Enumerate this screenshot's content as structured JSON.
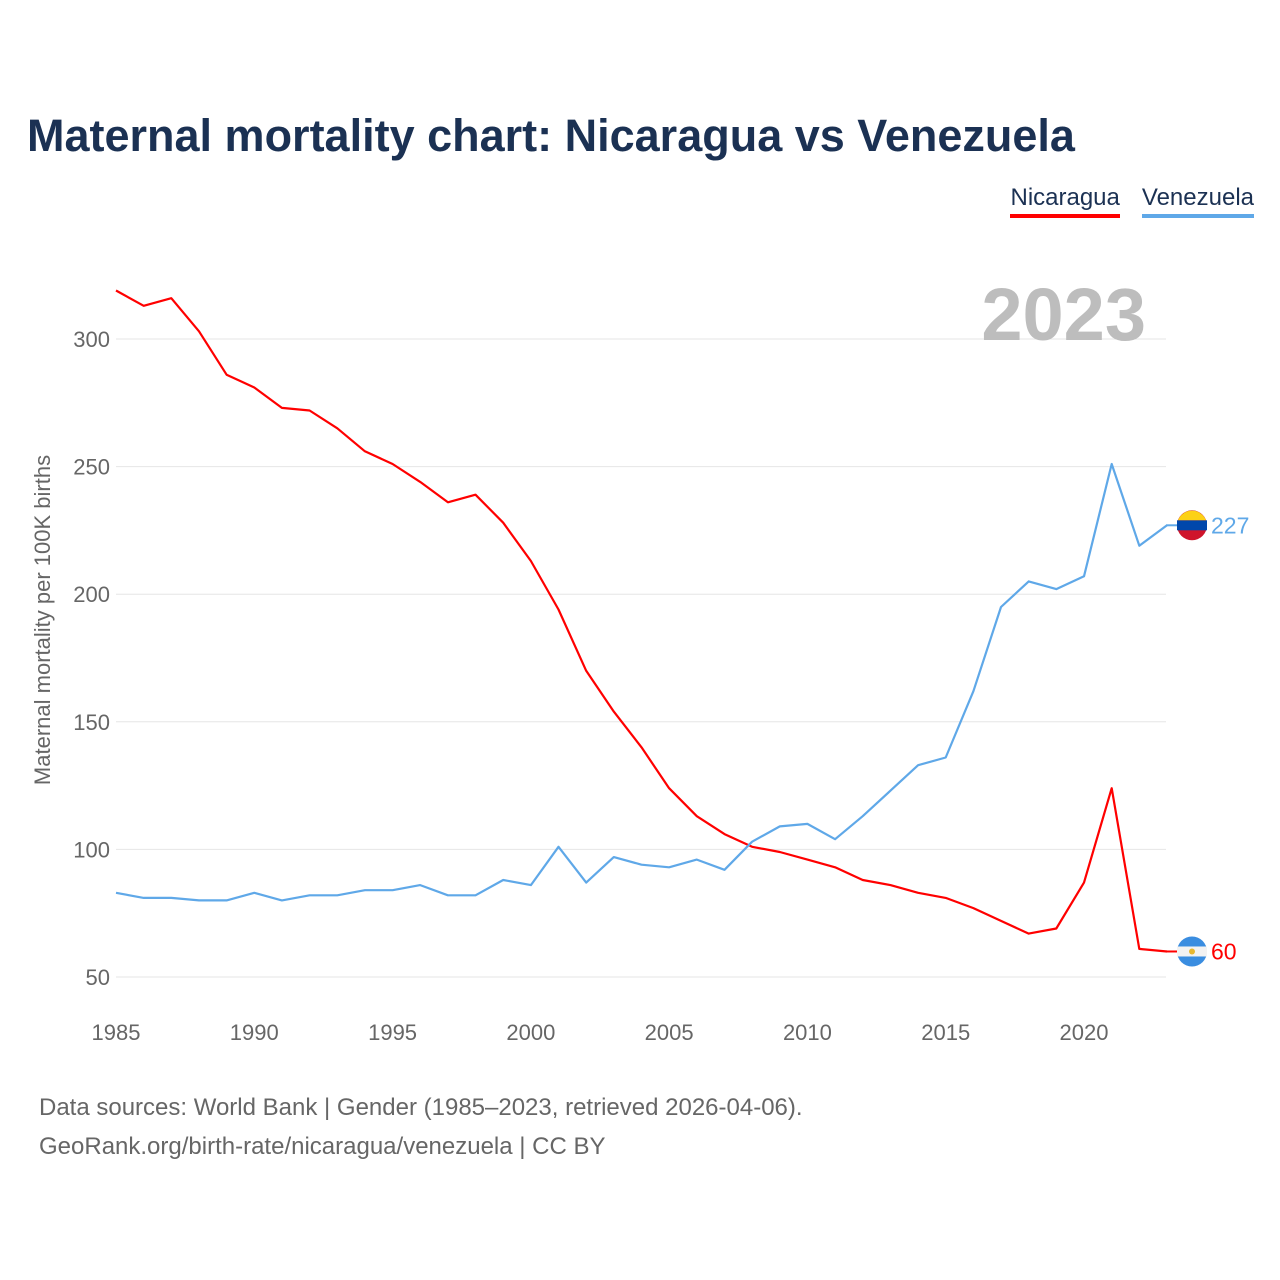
{
  "chart_data": {
    "type": "line",
    "title": "Maternal mortality chart: Nicaragua vs Venezuela",
    "xlabel": "",
    "ylabel": "Maternal mortality per 100K births",
    "year_label": "2023",
    "xlim": [
      1985,
      2023
    ],
    "ylim": [
      40,
      325
    ],
    "x_ticks": [
      1985,
      1990,
      1995,
      2000,
      2005,
      2010,
      2015,
      2020
    ],
    "y_ticks": [
      50,
      100,
      150,
      200,
      250,
      300
    ],
    "grid": true,
    "legend_placement": "top-right",
    "x": [
      1985,
      1986,
      1987,
      1988,
      1989,
      1990,
      1991,
      1992,
      1993,
      1994,
      1995,
      1996,
      1997,
      1998,
      1999,
      2000,
      2001,
      2002,
      2003,
      2004,
      2005,
      2006,
      2007,
      2008,
      2009,
      2010,
      2011,
      2012,
      2013,
      2014,
      2015,
      2016,
      2017,
      2018,
      2019,
      2020,
      2021,
      2022,
      2023
    ],
    "series": [
      {
        "name": "Nicaragua",
        "color": "#ff0000",
        "end_label": "60",
        "values": [
          319,
          313,
          316,
          303,
          286,
          281,
          273,
          272,
          265,
          256,
          251,
          244,
          236,
          239,
          228,
          213,
          194,
          170,
          154,
          140,
          124,
          113,
          106,
          101,
          99,
          96,
          93,
          88,
          86,
          83,
          81,
          77,
          72,
          67,
          69,
          87,
          124,
          61,
          60
        ]
      },
      {
        "name": "Venezuela",
        "color": "#5fa8e8",
        "end_label": "227",
        "values": [
          83,
          81,
          81,
          80,
          80,
          83,
          80,
          82,
          82,
          84,
          84,
          86,
          82,
          82,
          88,
          86,
          101,
          87,
          97,
          94,
          93,
          96,
          92,
          103,
          109,
          110,
          104,
          113,
          123,
          133,
          136,
          162,
          195,
          205,
          202,
          207,
          251,
          219,
          227
        ]
      }
    ]
  },
  "footer": {
    "line1": "Data sources: World Bank | Gender (1985–2023, retrieved 2026-04-06).",
    "line2": "GeoRank.org/birth-rate/nicaragua/venezuela | CC BY"
  }
}
